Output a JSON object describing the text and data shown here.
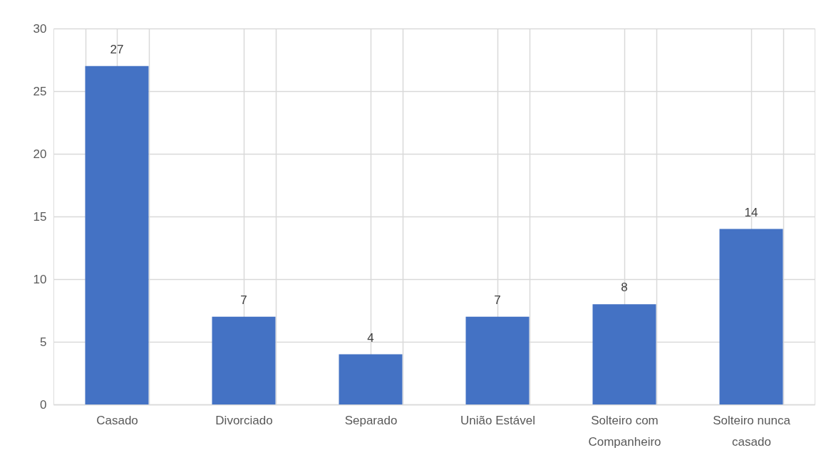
{
  "chart_data": {
    "type": "bar",
    "categories": [
      "Casado",
      "Divorciado",
      "Separado",
      "União Estável",
      "Solteiro com Companheiro",
      "Solteiro nunca casado"
    ],
    "values": [
      27,
      7,
      4,
      7,
      8,
      14
    ],
    "color": "#4472c4",
    "ylim": [
      0,
      30
    ],
    "yticks": [
      0,
      5,
      10,
      15,
      20,
      25,
      30
    ],
    "grid": true,
    "data_labels": true
  }
}
